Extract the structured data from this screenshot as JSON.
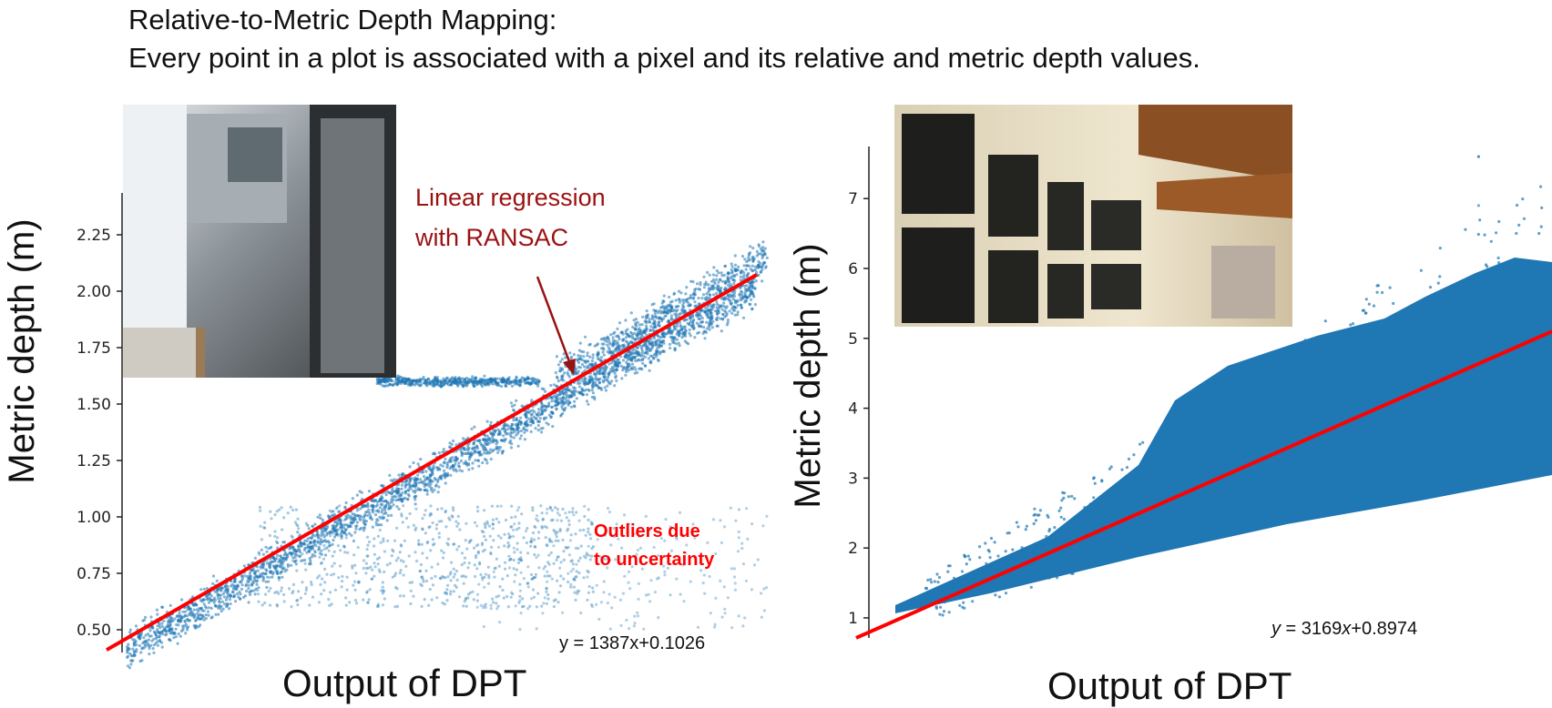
{
  "title": {
    "line1": "Relative-to-Metric Depth Mapping:",
    "line2": "Every point in a plot is associated with a pixel and its relative and metric depth values."
  },
  "colors": {
    "points": "#1f77b4",
    "fit": "#ff0000",
    "annotation": "#9b1111",
    "outlier_note": "#ff0000"
  },
  "chart_data": [
    {
      "type": "scatter",
      "xlabel": "Output of DPT",
      "ylabel": "Metric depth (m)",
      "yticks": [
        0.5,
        0.75,
        1.0,
        1.25,
        1.5,
        1.75,
        2.0,
        2.25
      ],
      "ytick_labels": [
        "0.50",
        "0.75",
        "1.00",
        "1.25",
        "1.50",
        "1.75",
        "2.00",
        "2.25"
      ],
      "xlim": [
        0.000222,
        0.001421
      ],
      "ylim": [
        0.41,
        2.4
      ],
      "fit": {
        "slope": 1387,
        "intercept": 0.1026,
        "label": "y = 1387x+0.1026"
      },
      "annotations": {
        "regression_line1": "Linear regression",
        "regression_line2": "with RANSAC",
        "outliers_line1": "Outliers due",
        "outliers_line2": "to uncertainty"
      },
      "inset": "indoor hallway photo"
    },
    {
      "type": "scatter",
      "xlabel": "Output of DPT",
      "ylabel": "Metric depth (m)",
      "yticks": [
        1,
        2,
        3,
        4,
        5,
        6,
        7
      ],
      "ytick_labels": [
        "1",
        "2",
        "3",
        "4",
        "5",
        "6",
        "7"
      ],
      "xlim": [
        -5.78e-05,
        0.001326
      ],
      "ylim": [
        0.71,
        7.8
      ],
      "fit": {
        "slope": 3169,
        "intercept": 0.8974,
        "label_y": "y",
        "label_eq": " = 3169",
        "label_x": "x",
        "label_rest": "+0.8974"
      },
      "inset": "hall with wall plaques photo"
    }
  ]
}
